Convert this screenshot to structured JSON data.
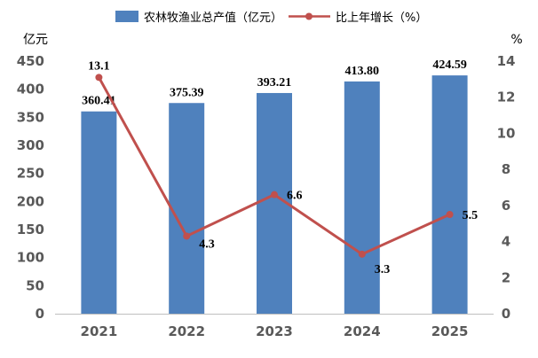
{
  "chart_data": {
    "type": "bar+line",
    "categories": [
      "2021",
      "2022",
      "2023",
      "2024",
      "2025"
    ],
    "series": [
      {
        "name": "农林牧渔业总产值（亿元）",
        "type": "bar",
        "axis": "left",
        "color": "#4f81bd",
        "values": [
          360.41,
          375.39,
          393.21,
          413.8,
          424.59
        ],
        "labels": [
          "360.41",
          "375.39",
          "393.21",
          "413.80",
          "424.59"
        ]
      },
      {
        "name": "比上年增长（%）",
        "type": "line",
        "axis": "right",
        "color": "#c0504d",
        "values": [
          13.1,
          4.3,
          6.6,
          3.3,
          5.5
        ],
        "labels": [
          "13.1",
          "4.3",
          "6.6",
          "3.3",
          "5.5"
        ]
      }
    ],
    "y_left": {
      "unit": "亿元",
      "ylim": [
        0,
        450
      ],
      "ticks": [
        "0",
        "50",
        "100",
        "150",
        "200",
        "250",
        "300",
        "350",
        "400",
        "450"
      ]
    },
    "y_right": {
      "unit": "%",
      "ylim": [
        0,
        14
      ],
      "ticks": [
        "0",
        "2",
        "4",
        "6",
        "8",
        "10",
        "12",
        "14"
      ]
    },
    "legend_position": "top-center",
    "grid": false
  }
}
